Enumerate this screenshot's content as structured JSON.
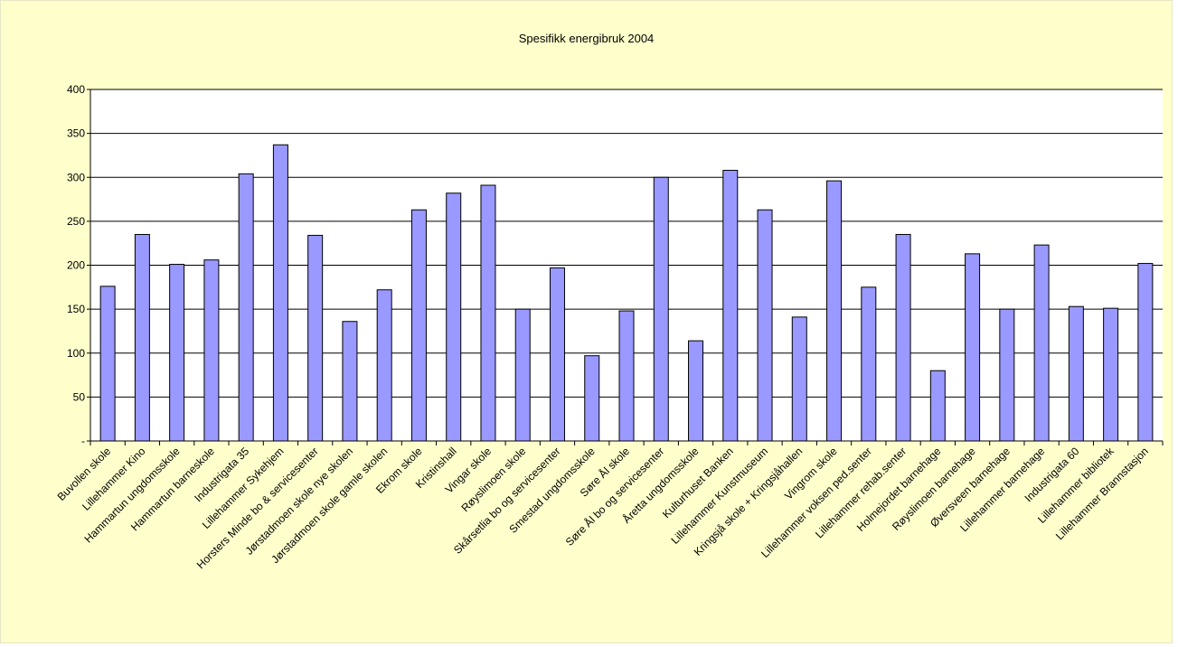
{
  "chart_data": {
    "type": "bar",
    "title": "Spesifikk energibruk 2004",
    "xlabel": "",
    "ylabel": "",
    "ylim": [
      0,
      400
    ],
    "yticks": [
      0,
      50,
      100,
      150,
      200,
      250,
      300,
      350,
      400
    ],
    "ytick_labels": [
      "-",
      "50",
      "100",
      "150",
      "200",
      "250",
      "300",
      "350",
      "400"
    ],
    "grid": true,
    "legend": "none",
    "bar_color": "#9999ff",
    "bar_border_color": "#000000",
    "background_color": "#ffffcc",
    "categories": [
      "Buvollen skole",
      "Lillehammer Kino",
      "Hammartun ungdomsskole",
      "Hammartun barneskole",
      "Industrigata 35",
      "Lillehammer Sykehjem",
      "Horsters Minde bo & servicesenter",
      "Jørstadmoen skole nye skolen",
      "Jørstadmoen skole gamle skolen",
      "Ekrom skole",
      "Kristinshall",
      "Vingar skole",
      "Røyslimoen skole",
      "Skårsetlia bo og servicesenter",
      "Smestad ungdomsskole",
      "Søre Ål skole",
      "Søre Ål bo og servicesenter",
      "Åretta ungdomsskole",
      "Kulturhuset Banken",
      "Lillehammer Kunstmuseum",
      "Kringsjå skole + Kringsjåhallen",
      "Vingrom skole",
      "Lillehammer voksen ped.senter",
      "Lillehammer rehab.senter",
      "Holmejordet barnehage",
      "Røyslimoen barnehage",
      "Øversveen barnehage",
      "Lillehammer barnehage",
      "Industrigata 60",
      "Lillehammer bibliotek",
      "Lillehammer Brannstasjon"
    ],
    "values": [
      176,
      235,
      201,
      206,
      304,
      337,
      234,
      136,
      172,
      263,
      282,
      291,
      150,
      197,
      97,
      148,
      300,
      114,
      308,
      263,
      141,
      296,
      175,
      235,
      80,
      213,
      150,
      223,
      153,
      151,
      202
    ]
  }
}
